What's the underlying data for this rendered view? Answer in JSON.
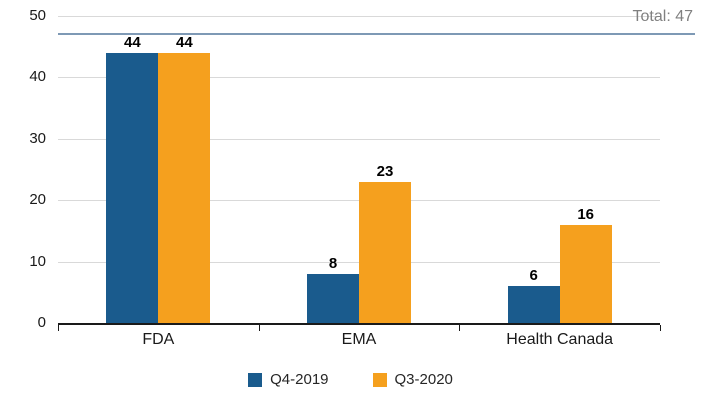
{
  "chart_data": {
    "type": "bar",
    "title": "",
    "xlabel": "",
    "ylabel": "",
    "categories": [
      "FDA",
      "EMA",
      "Health Canada"
    ],
    "series": [
      {
        "name": "Q4-2019",
        "color": "#1a5b8d",
        "values": [
          44,
          8,
          6
        ]
      },
      {
        "name": "Q3-2020",
        "color": "#f5a01e",
        "values": [
          44,
          23,
          16
        ]
      }
    ],
    "ylim": [
      0,
      50
    ],
    "yticks": [
      0,
      10,
      20,
      30,
      40,
      50
    ],
    "grid": true,
    "data_labels": true,
    "legend_position": "bottom",
    "reference_line": {
      "value": 47,
      "label": "Total: 47",
      "color": "#7e99b5",
      "label_color": "#808080"
    }
  },
  "colors": {
    "grid": "#d9d9d9",
    "axis": "#1a1a1a",
    "tick_label": "#1a1a1a",
    "background": "#ffffff"
  }
}
